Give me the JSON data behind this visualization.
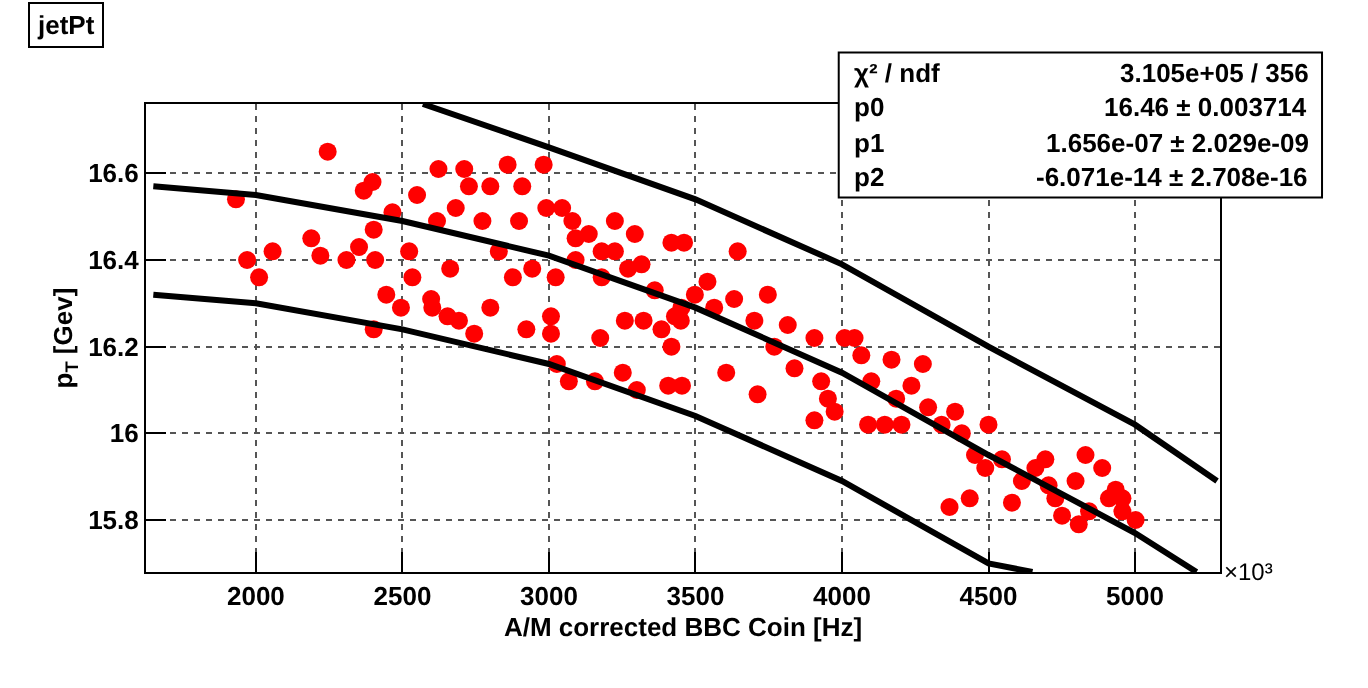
{
  "chart_data": {
    "type": "scatter",
    "title": "jetPt",
    "xlabel": "A/M corrected BBC Coin [Hz]",
    "ylabel": "p$_{T}$ [Gev]",
    "xlim": [
      1625,
      5290
    ],
    "ylim": [
      15.68,
      16.76
    ],
    "xticks": [
      2000,
      2500,
      3000,
      3500,
      4000,
      4500,
      5000
    ],
    "yticks": [
      15.8,
      16,
      16.2,
      16.4,
      16.6
    ],
    "grid": true,
    "annotations": [
      "χ² / ndf",
      "3.105e+05 / 356",
      "p0",
      "16.46 ± 0.003714",
      "p1",
      "1.656e-07 ± 2.029e-09",
      "p2",
      "-6.071e-14 ± 2.708e-16",
      "×10³"
    ],
    "series": [
      {
        "marker": "circle",
        "color": "#ff0000",
        "x": [
          1932,
          1970,
          2011,
          2057,
          2189,
          2220,
          2245,
          2309,
          2352,
          2402,
          2402,
          2368,
          2398,
          2407,
          2445,
          2466,
          2495,
          2523,
          2534,
          2550,
          2598,
          2602,
          2623,
          2618,
          2654,
          2663,
          2682,
          2693,
          2711,
          2727,
          2745,
          2773,
          2800,
          2800,
          2829,
          2859,
          2877,
          2898,
          2909,
          2923,
          2943,
          2982,
          2991,
          3007,
          3007,
          3023,
          3027,
          3068,
          3080,
          3091,
          3157,
          3175,
          3180,
          3225,
          3252,
          3259,
          3293,
          3300,
          3323,
          3407,
          3418,
          3418,
          3452,
          3498,
          3045,
          3091,
          3136,
          3180,
          3225,
          3270,
          3316,
          3361,
          3430,
          3384,
          3461,
          3644,
          3541,
          3564,
          3450,
          3454,
          3605,
          3632,
          3701,
          3712,
          3747,
          3769,
          3815,
          3838,
          3906,
          3906,
          3929,
          3975,
          4009,
          4043,
          4066,
          4100,
          4089,
          4146,
          4169,
          4185,
          4203,
          4237,
          4276,
          4294,
          4340,
          4367,
          4386,
          4436,
          4454,
          4500,
          4489,
          4546,
          4580,
          4614,
          4660,
          4694,
          4728,
          4751,
          4797,
          4808,
          4831,
          4843,
          4888,
          4911,
          4934,
          4957,
          5002,
          4957,
          4705,
          4409,
          3952
        ],
        "values": [
          16.54,
          16.4,
          16.36,
          16.42,
          16.45,
          16.41,
          16.65,
          16.4,
          16.43,
          16.24,
          16.47,
          16.56,
          16.58,
          16.4,
          16.32,
          16.51,
          16.29,
          16.42,
          16.36,
          16.55,
          16.31,
          16.29,
          16.61,
          16.49,
          16.27,
          16.38,
          16.52,
          16.26,
          16.61,
          16.57,
          16.23,
          16.49,
          16.57,
          16.29,
          16.42,
          16.62,
          16.36,
          16.49,
          16.57,
          16.24,
          16.38,
          16.62,
          16.52,
          16.27,
          16.23,
          16.36,
          16.16,
          16.12,
          16.49,
          16.45,
          16.12,
          16.22,
          16.42,
          16.49,
          16.14,
          16.26,
          16.46,
          16.1,
          16.26,
          16.11,
          16.44,
          16.2,
          16.29,
          16.32,
          16.52,
          16.4,
          16.46,
          16.36,
          16.42,
          16.38,
          16.39,
          16.33,
          16.27,
          16.24,
          16.44,
          16.42,
          16.35,
          16.29,
          16.26,
          16.11,
          16.14,
          16.31,
          16.26,
          16.09,
          16.32,
          16.2,
          16.25,
          16.15,
          16.22,
          16.03,
          16.12,
          16.05,
          16.22,
          16.22,
          16.18,
          16.12,
          16.02,
          16.02,
          16.17,
          16.08,
          16.02,
          16.11,
          16.16,
          16.06,
          16.02,
          15.83,
          16.05,
          15.85,
          15.95,
          16.02,
          15.92,
          15.94,
          15.84,
          15.89,
          15.92,
          15.94,
          15.85,
          15.81,
          15.89,
          15.79,
          15.95,
          15.82,
          15.92,
          15.85,
          15.87,
          15.85,
          15.8,
          15.82,
          15.88,
          16.0,
          16.08
        ]
      },
      {
        "type": "line",
        "marker": "none",
        "color": "#000000",
        "x": [
          1650,
          2000,
          2500,
          3000,
          3500,
          4000,
          4500,
          5000,
          5210
        ],
        "values": [
          16.57,
          16.55,
          16.49,
          16.41,
          16.29,
          16.14,
          15.95,
          15.77,
          15.68
        ]
      },
      {
        "type": "line",
        "marker": "none",
        "color": "#000000",
        "x": [
          2570,
          3000,
          3500,
          4000,
          4500,
          5000,
          5280
        ],
        "values": [
          16.76,
          16.66,
          16.54,
          16.39,
          16.2,
          16.02,
          15.89
        ]
      },
      {
        "type": "line",
        "marker": "none",
        "color": "#000000",
        "x": [
          1650,
          2000,
          2500,
          3000,
          3500,
          4000,
          4500,
          4650
        ],
        "values": [
          16.32,
          16.3,
          16.24,
          16.16,
          16.04,
          15.89,
          15.7,
          15.68
        ]
      }
    ]
  }
}
